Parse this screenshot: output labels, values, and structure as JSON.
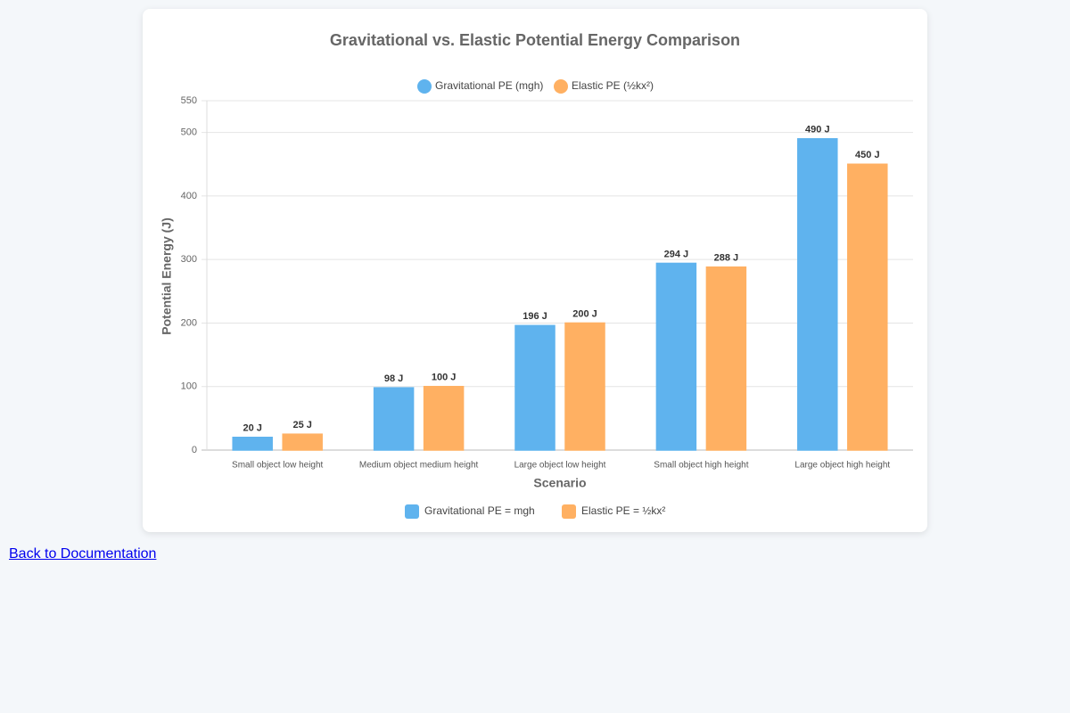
{
  "chart_data": {
    "type": "bar",
    "title": "Gravitational vs. Elastic Potential Energy Comparison",
    "categories": [
      "Small object low height",
      "Medium object medium height",
      "Large object low height",
      "Small object high height",
      "Large object high height"
    ],
    "series": [
      {
        "name": "Gravitational PE (mgh)",
        "color": "#5fb3ee",
        "values": [
          20,
          98,
          196,
          294,
          490
        ],
        "value_labels": [
          "20 J",
          "98 J",
          "196 J",
          "294 J",
          "490 J"
        ]
      },
      {
        "name": "Elastic PE (½kx²)",
        "color": "#ffb062",
        "values": [
          25,
          100,
          200,
          288,
          450
        ],
        "value_labels": [
          "25 J",
          "100 J",
          "200 J",
          "288 J",
          "450 J"
        ]
      }
    ],
    "ylim": [
      0,
      550
    ],
    "yticks": [
      0,
      100,
      200,
      300,
      400,
      500,
      550
    ],
    "ylabel": "Potential Energy (J)",
    "xlabel": "Scenario",
    "grid": true,
    "formula_legend": [
      "Gravitational PE = mgh",
      "Elastic PE = ½kx²"
    ]
  },
  "link": "Back to Documentation"
}
